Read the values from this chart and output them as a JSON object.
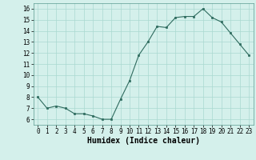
{
  "x": [
    0,
    1,
    2,
    3,
    4,
    5,
    6,
    7,
    8,
    9,
    10,
    11,
    12,
    13,
    14,
    15,
    16,
    17,
    18,
    19,
    20,
    21,
    22,
    23
  ],
  "y": [
    8.0,
    7.0,
    7.2,
    7.0,
    6.5,
    6.5,
    6.3,
    6.0,
    6.0,
    7.8,
    9.5,
    11.8,
    13.0,
    14.4,
    14.3,
    15.2,
    15.3,
    15.3,
    16.0,
    15.2,
    14.8,
    13.8,
    12.8,
    11.8
  ],
  "xlabel": "Humidex (Indice chaleur)",
  "ylim": [
    5.5,
    16.5
  ],
  "xlim": [
    -0.5,
    23.5
  ],
  "yticks": [
    6,
    7,
    8,
    9,
    10,
    11,
    12,
    13,
    14,
    15,
    16
  ],
  "xticks": [
    0,
    1,
    2,
    3,
    4,
    5,
    6,
    7,
    8,
    9,
    10,
    11,
    12,
    13,
    14,
    15,
    16,
    17,
    18,
    19,
    20,
    21,
    22,
    23
  ],
  "line_color": "#2e6b5e",
  "marker_color": "#2e6b5e",
  "bg_color": "#d4f0eb",
  "grid_color": "#aad8d0",
  "label_fontsize": 7,
  "tick_fontsize": 5.5
}
